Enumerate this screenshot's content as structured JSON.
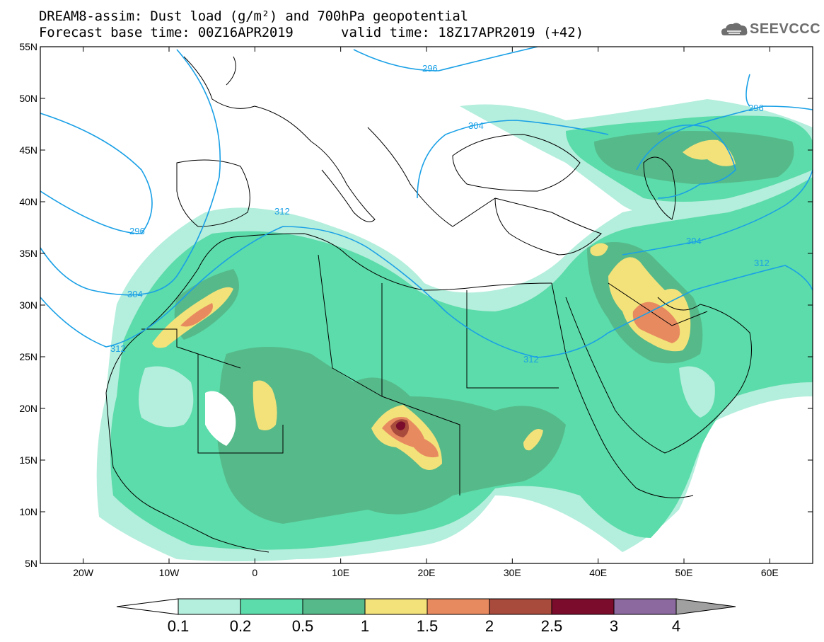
{
  "header": {
    "line1": "DREAM8-assim: Dust load (g/m²) and 700hPa geopotential",
    "line2": "Forecast base time: 00Z16APR2019",
    "valid": "valid time: 18Z17APR2019 (+42)",
    "logo_text": "SEEVCCC"
  },
  "map": {
    "lon_ticks": [
      "20W",
      "10W",
      "0",
      "10E",
      "20E",
      "30E",
      "40E",
      "50E",
      "60E"
    ],
    "lon_values": [
      -20,
      -10,
      0,
      10,
      20,
      30,
      40,
      50,
      60
    ],
    "lat_ticks": [
      "55N",
      "50N",
      "45N",
      "40N",
      "35N",
      "30N",
      "25N",
      "20N",
      "15N",
      "10N",
      "5N"
    ],
    "lat_values": [
      55,
      50,
      45,
      40,
      35,
      30,
      25,
      20,
      15,
      10,
      5
    ],
    "lon_range": [
      -25,
      65
    ],
    "lat_range": [
      5,
      55
    ],
    "contour_color": "#1aa0e6",
    "contour_labels": [
      "312",
      "304",
      "296",
      "312",
      "304",
      "296",
      "312",
      "304",
      "312",
      "296"
    ]
  },
  "colorbar": {
    "labels": [
      "0.1",
      "0.2",
      "0.5",
      "1",
      "1.5",
      "2",
      "2.5",
      "3",
      "4"
    ],
    "colors": [
      "#ffffff",
      "#b4eedc",
      "#5bdcaa",
      "#56b98a",
      "#f3e27a",
      "#e88a60",
      "#a84a3c",
      "#7b0c2c",
      "#8c6aa0",
      "#a0a0a0"
    ]
  }
}
